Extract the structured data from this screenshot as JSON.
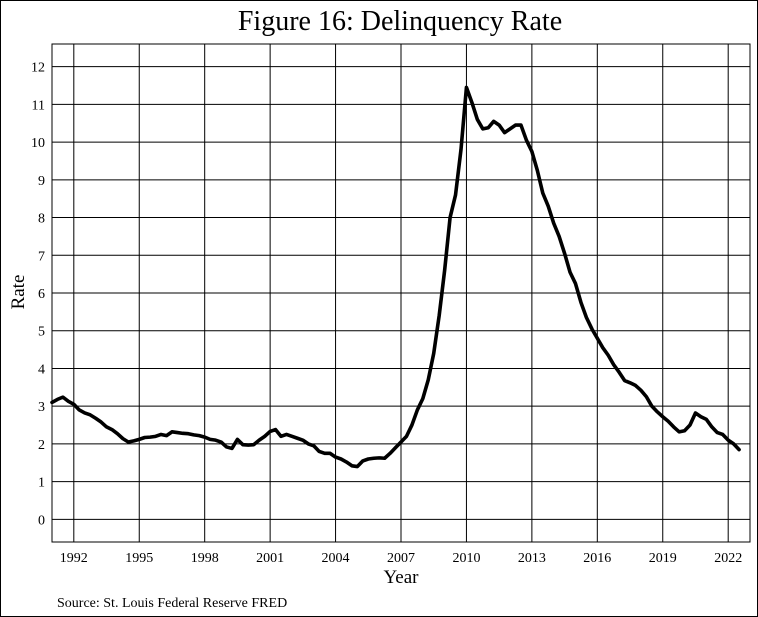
{
  "chart_data": {
    "type": "line",
    "title": "Figure 16: Delinquency Rate",
    "xlabel": "Year",
    "ylabel": "Rate",
    "source_note": "Source: St. Louis Federal Reserve FRED",
    "xlim": [
      1991,
      2023
    ],
    "ylim": [
      -0.6,
      12.6
    ],
    "grid": true,
    "x_ticks": [
      1992,
      1995,
      1998,
      2001,
      2004,
      2007,
      2010,
      2013,
      2016,
      2019,
      2022
    ],
    "x_tick_labels": [
      "1992",
      "1995",
      "1998",
      "2001",
      "2004",
      "2007",
      "2010",
      "2013",
      "2016",
      "2019",
      "2022"
    ],
    "y_ticks": [
      0,
      1,
      2,
      3,
      4,
      5,
      6,
      7,
      8,
      9,
      10,
      11,
      12
    ],
    "y_tick_labels": [
      "0",
      "1",
      "2",
      "3",
      "4",
      "5",
      "6",
      "7",
      "8",
      "9",
      "10",
      "11",
      "12"
    ],
    "line_color": "#000000",
    "series": [
      {
        "x": [
          1991.0,
          1991.25,
          1991.5,
          1991.75,
          1992.0,
          1992.25,
          1992.5,
          1992.75,
          1993.0,
          1993.25,
          1993.5,
          1993.75,
          1994.0,
          1994.25,
          1994.5,
          1994.75,
          1995.0,
          1995.25,
          1995.5,
          1995.75,
          1996.0,
          1996.25,
          1996.5,
          1996.75,
          1997.0,
          1997.25,
          1997.5,
          1997.75,
          1998.0,
          1998.25,
          1998.5,
          1998.75,
          1999.0,
          1999.25,
          1999.5,
          1999.75,
          2000.0,
          2000.25,
          2000.5,
          2000.75,
          2001.0,
          2001.25,
          2001.5,
          2001.75,
          2002.0,
          2002.25,
          2002.5,
          2002.75,
          2003.0,
          2003.25,
          2003.5,
          2003.75,
          2004.0,
          2004.25,
          2004.5,
          2004.75,
          2005.0,
          2005.25,
          2005.5,
          2005.75,
          2006.0,
          2006.25,
          2006.5,
          2006.75,
          2007.0,
          2007.25,
          2007.5,
          2007.75,
          2008.0,
          2008.25,
          2008.5,
          2008.75,
          2009.0,
          2009.25,
          2009.5,
          2009.75,
          2010.0,
          2010.25,
          2010.5,
          2010.75,
          2011.0,
          2011.25,
          2011.5,
          2011.75,
          2012.0,
          2012.25,
          2012.5,
          2012.75,
          2013.0,
          2013.25,
          2013.5,
          2013.75,
          2014.0,
          2014.25,
          2014.5,
          2014.75,
          2015.0,
          2015.25,
          2015.5,
          2015.75,
          2016.0,
          2016.25,
          2016.5,
          2016.75,
          2017.0,
          2017.25,
          2017.5,
          2017.75,
          2018.0,
          2018.25,
          2018.5,
          2018.75,
          2019.0,
          2019.25,
          2019.5,
          2019.75,
          2020.0,
          2020.25,
          2020.5,
          2020.75,
          2021.0,
          2021.25,
          2021.5,
          2021.75,
          2022.0,
          2022.25,
          2022.5
        ],
        "y": [
          3.1,
          3.18,
          3.24,
          3.13,
          3.05,
          2.9,
          2.82,
          2.77,
          2.68,
          2.58,
          2.45,
          2.38,
          2.27,
          2.14,
          2.05,
          2.08,
          2.12,
          2.17,
          2.18,
          2.2,
          2.25,
          2.22,
          2.32,
          2.3,
          2.28,
          2.27,
          2.24,
          2.22,
          2.18,
          2.12,
          2.1,
          2.05,
          1.92,
          1.88,
          2.12,
          1.98,
          1.97,
          1.98,
          2.1,
          2.2,
          2.33,
          2.38,
          2.2,
          2.25,
          2.2,
          2.15,
          2.1,
          2.0,
          1.95,
          1.8,
          1.75,
          1.75,
          1.65,
          1.6,
          1.52,
          1.42,
          1.4,
          1.55,
          1.6,
          1.62,
          1.63,
          1.62,
          1.75,
          1.9,
          2.05,
          2.2,
          2.5,
          2.9,
          3.2,
          3.7,
          4.4,
          5.4,
          6.6,
          8.0,
          8.6,
          9.8,
          11.45,
          11.05,
          10.6,
          10.35,
          10.38,
          10.55,
          10.45,
          10.25,
          10.35,
          10.45,
          10.45,
          10.05,
          9.75,
          9.25,
          8.65,
          8.3,
          7.85,
          7.5,
          7.05,
          6.55,
          6.25,
          5.75,
          5.35,
          5.05,
          4.8,
          4.55,
          4.35,
          4.1,
          3.9,
          3.68,
          3.62,
          3.55,
          3.42,
          3.25,
          3.0,
          2.85,
          2.72,
          2.6,
          2.45,
          2.32,
          2.35,
          2.5,
          2.82,
          2.72,
          2.65,
          2.45,
          2.3,
          2.25,
          2.1,
          2.0,
          1.85
        ]
      }
    ]
  }
}
